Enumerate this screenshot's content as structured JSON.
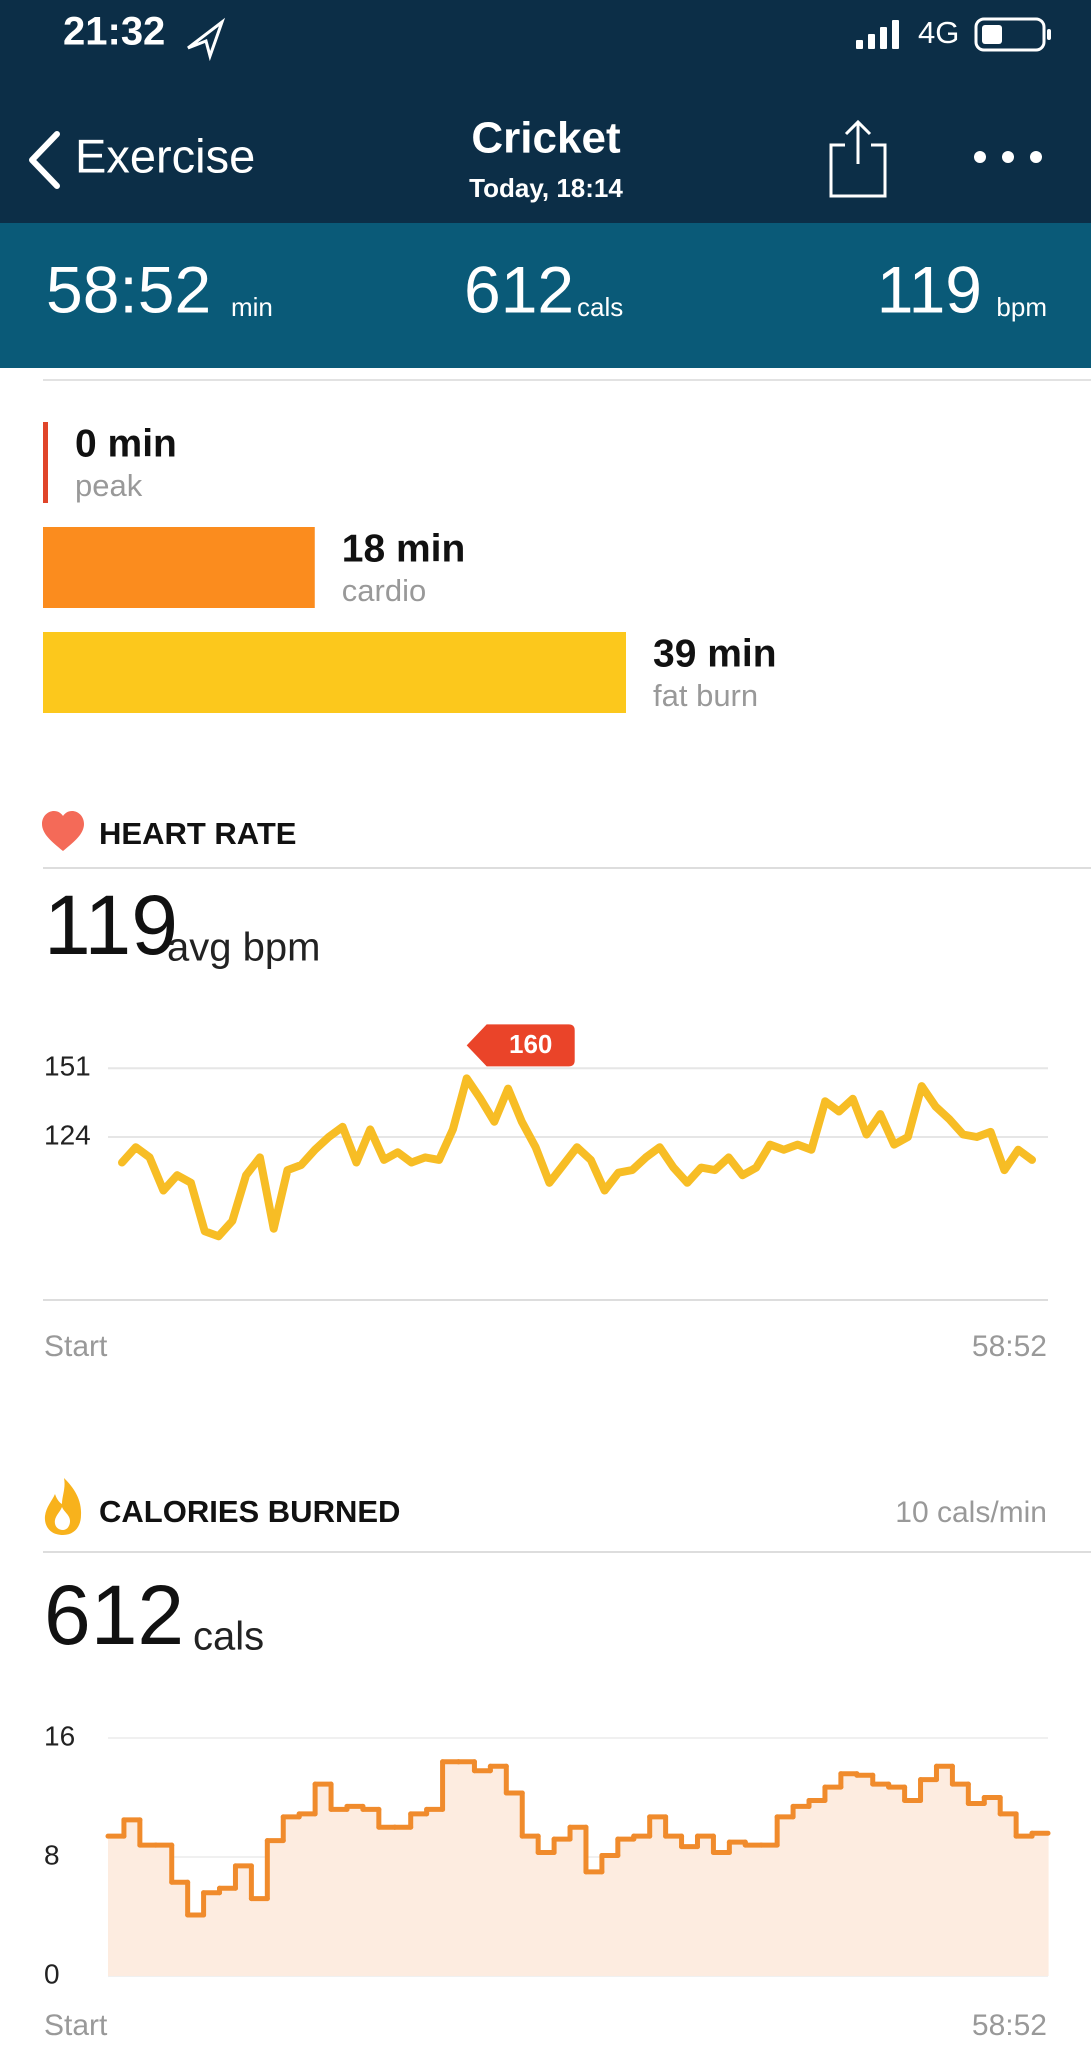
{
  "status_bar": {
    "time": "21:32",
    "network": "4G"
  },
  "nav": {
    "back": "Exercise",
    "title": "Cricket",
    "subtitle": "Today, 18:14"
  },
  "summary": [
    {
      "value": "58:52",
      "unit": "min"
    },
    {
      "value": 612,
      "unit": "cals"
    },
    {
      "value": 119,
      "unit": "bpm"
    }
  ],
  "chart_data": [
    {
      "type": "bar",
      "categories": [
        "peak",
        "cardio",
        "fat burn"
      ],
      "values": [
        0,
        18,
        39
      ],
      "value_labels": [
        "0 min",
        "18 min",
        "39 min"
      ],
      "colors": [
        "#e0452a",
        "#fb8c1e",
        "#fcc81c"
      ]
    },
    {
      "type": "line",
      "title": "HEART RATE",
      "average": 119,
      "average_unit": "avg bpm",
      "x_labels": [
        "Start",
        "58:52"
      ],
      "ylim": [
        60,
        160
      ],
      "yticks": [
        124,
        151
      ],
      "grid": true,
      "peak_label": 160,
      "peak_color": "#ea4429",
      "series": [
        {
          "name": "heart rate",
          "color": "#f7bd25",
          "values": [
            114,
            120,
            116,
            103,
            109,
            106,
            87,
            85,
            91,
            109,
            116,
            88,
            111,
            113,
            119,
            124,
            128,
            114,
            127,
            115,
            118,
            114,
            116,
            115,
            127,
            147,
            139,
            130,
            143,
            130,
            120,
            106,
            113,
            120,
            115,
            103,
            110,
            111,
            116,
            120,
            112,
            106,
            112,
            111,
            116,
            109,
            112,
            121,
            119,
            121,
            119,
            138,
            134,
            139,
            125,
            133,
            121,
            124,
            144,
            136,
            131,
            125,
            124,
            126,
            111,
            119,
            115
          ]
        }
      ]
    },
    {
      "type": "step",
      "title": "CALORIES BURNED",
      "rate": "10 cals/min",
      "total": 612,
      "total_unit": "cals",
      "x_labels": [
        "Start",
        "58:52"
      ],
      "ylim": [
        0,
        16
      ],
      "yticks": [
        0,
        8,
        16
      ],
      "grid": true,
      "fill": "#fdece0",
      "series": [
        {
          "name": "calories",
          "color": "#f08b2c",
          "values": [
            9.4,
            10.5,
            8.8,
            8.8,
            6.3,
            4.1,
            5.6,
            5.9,
            7.4,
            5.2,
            9.1,
            10.7,
            10.9,
            12.9,
            11.2,
            11.4,
            11.2,
            10.0,
            10.0,
            10.9,
            11.2,
            14.4,
            14.4,
            13.8,
            14.1,
            12.3,
            9.4,
            8.3,
            9.2,
            10.0,
            7.0,
            8.1,
            9.2,
            9.4,
            10.7,
            9.4,
            8.7,
            9.4,
            8.3,
            9.0,
            8.8,
            8.8,
            10.7,
            11.4,
            11.8,
            12.7,
            13.6,
            13.5,
            12.9,
            12.7,
            11.8,
            13.2,
            14.1,
            12.9,
            11.6,
            12.0,
            10.9,
            9.4,
            9.6
          ]
        }
      ]
    }
  ]
}
